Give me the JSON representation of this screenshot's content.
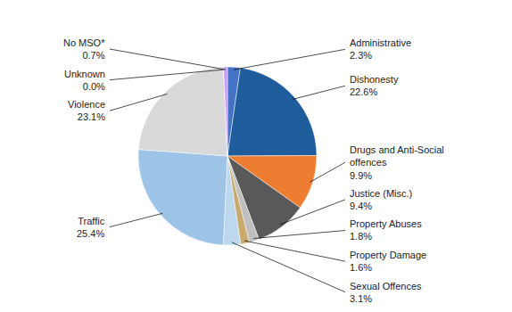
{
  "chart_data": {
    "type": "pie",
    "categories": [
      "Administrative",
      "Dishonesty",
      "Drugs and Anti-Social\noffences",
      "Justice (Misc.)",
      "Property Abuses",
      "Property Damage",
      "Sexual Offences",
      "Traffic",
      "Violence",
      "Unknown",
      "No MSO*"
    ],
    "values": [
      2.3,
      22.6,
      9.9,
      9.4,
      1.8,
      1.6,
      3.1,
      25.4,
      23.1,
      0.0,
      0.7
    ],
    "value_labels": [
      "2.3%",
      "22.6%",
      "9.9%",
      "9.4%",
      "1.8%",
      "1.6%",
      "3.1%",
      "25.4%",
      "23.1%",
      "0.0%",
      "0.7%"
    ],
    "colors": [
      "#4472C4",
      "#1F5C9C",
      "#ED7D31",
      "#595959",
      "#BFBFBF",
      "#C8A96E",
      "#BDD7EE",
      "#9DC3E6",
      "#D9D9D9",
      "#FFE699",
      "#CC99FF"
    ],
    "data_labels": true
  }
}
